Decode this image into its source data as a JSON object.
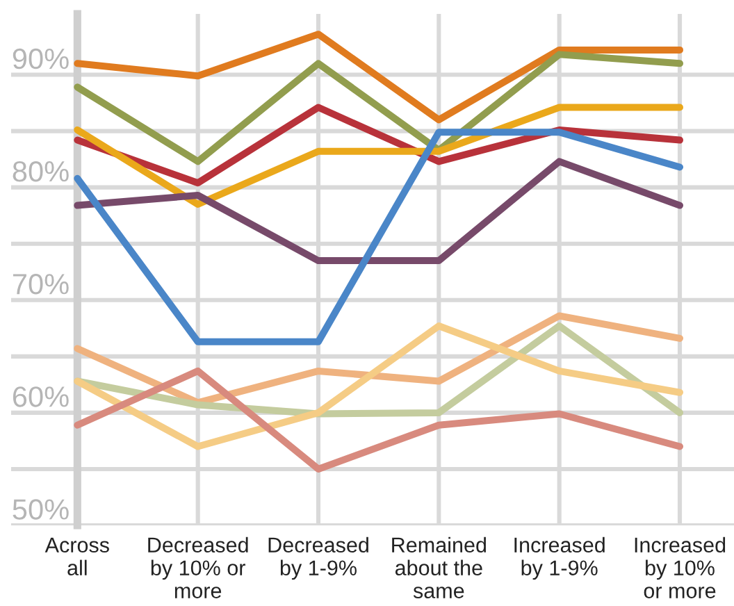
{
  "chart_data": {
    "type": "line",
    "categories": [
      "Across\nall",
      "Decreased\nby 10% or\nmore",
      "Decreased\nby 1-9%",
      "Remained\nabout the\nsame",
      "Increased\nby 1-9%",
      "Increased\nby 10%\nor more"
    ],
    "series": [
      {
        "color": "#e07b1f",
        "values": [
          91.0,
          89.9,
          93.6,
          86.0,
          92.2,
          92.2
        ]
      },
      {
        "color": "#929d4e",
        "values": [
          88.9,
          82.3,
          91.0,
          83.3,
          91.8,
          91.0
        ]
      },
      {
        "color": "#b8323a",
        "values": [
          84.2,
          80.4,
          87.1,
          82.3,
          85.1,
          84.2
        ]
      },
      {
        "color": "#eaa81b",
        "values": [
          85.1,
          78.5,
          83.2,
          83.2,
          87.1,
          87.1
        ]
      },
      {
        "color": "#774a6a",
        "values": [
          78.4,
          79.3,
          73.5,
          73.5,
          82.3,
          78.4
        ]
      },
      {
        "color": "#4a86c8",
        "values": [
          80.8,
          66.3,
          66.3,
          84.9,
          84.9,
          81.8
        ]
      },
      {
        "color": "#efb27f",
        "values": [
          65.7,
          60.9,
          63.7,
          62.8,
          68.6,
          66.6
        ]
      },
      {
        "color": "#c4cc9e",
        "values": [
          62.8,
          60.7,
          59.9,
          60.0,
          67.7,
          60.0
        ]
      },
      {
        "color": "#f5cc85",
        "values": [
          62.8,
          57.0,
          60.0,
          67.7,
          63.7,
          61.8
        ]
      },
      {
        "color": "#d88a7e",
        "values": [
          58.9,
          63.7,
          55.0,
          58.9,
          59.9,
          57.0
        ]
      }
    ],
    "ylim": [
      50,
      95.4
    ],
    "yticks": [
      {
        "value": 50,
        "label": "50%"
      },
      {
        "value": 55,
        "label": null
      },
      {
        "value": 60,
        "label": "60%"
      },
      {
        "value": 65,
        "label": null
      },
      {
        "value": 70,
        "label": "70%"
      },
      {
        "value": 75,
        "label": null
      },
      {
        "value": 80,
        "label": "80%"
      },
      {
        "value": 85,
        "label": null
      },
      {
        "value": 90,
        "label": "90%"
      }
    ],
    "grid": true,
    "marker": "none",
    "line_style": "solid"
  }
}
